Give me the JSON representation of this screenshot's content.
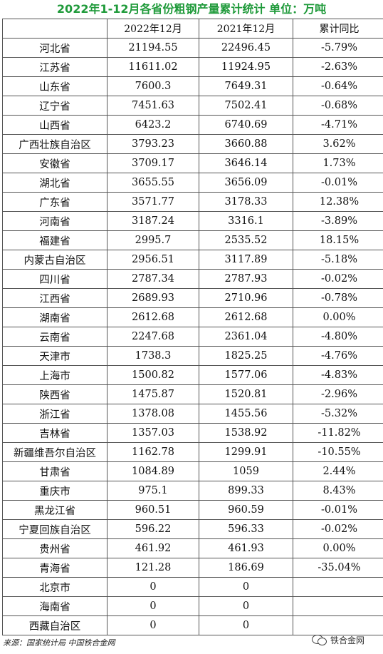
{
  "title": "2022年1-12月各省份粗钢产量累计统计  单位：万吨",
  "headers": [
    "",
    "2022年12月",
    "2021年12月",
    "累计同比"
  ],
  "rows": [
    {
      "name": "河北省",
      "v2022": "21194.55",
      "v2021": "22496.45",
      "yoy": "-5.79%",
      "dir": "neg"
    },
    {
      "name": "江苏省",
      "v2022": "11611.02",
      "v2021": "11924.95",
      "yoy": "-2.63%",
      "dir": "neg"
    },
    {
      "name": "山东省",
      "v2022": "7600.3",
      "v2021": "7649.31",
      "yoy": "-0.64%",
      "dir": "neg"
    },
    {
      "name": "辽宁省",
      "v2022": "7451.63",
      "v2021": "7502.41",
      "yoy": "-0.68%",
      "dir": "neg"
    },
    {
      "name": "山西省",
      "v2022": "6423.2",
      "v2021": "6740.69",
      "yoy": "-4.71%",
      "dir": "neg"
    },
    {
      "name": "广西壮族自治区",
      "v2022": "3793.23",
      "v2021": "3660.88",
      "yoy": "3.62%",
      "dir": "pos"
    },
    {
      "name": "安徽省",
      "v2022": "3709.17",
      "v2021": "3646.14",
      "yoy": "1.73%",
      "dir": "pos"
    },
    {
      "name": "湖北省",
      "v2022": "3655.55",
      "v2021": "3656.09",
      "yoy": "-0.01%",
      "dir": "neg"
    },
    {
      "name": "广东省",
      "v2022": "3571.77",
      "v2021": "3178.33",
      "yoy": "12.38%",
      "dir": "pos"
    },
    {
      "name": "河南省",
      "v2022": "3187.24",
      "v2021": "3316.1",
      "yoy": "-3.89%",
      "dir": "neg"
    },
    {
      "name": "福建省",
      "v2022": "2995.7",
      "v2021": "2535.52",
      "yoy": "18.15%",
      "dir": "pos"
    },
    {
      "name": "内蒙古自治区",
      "v2022": "2956.51",
      "v2021": "3117.89",
      "yoy": "-5.18%",
      "dir": "neg"
    },
    {
      "name": "四川省",
      "v2022": "2787.34",
      "v2021": "2787.93",
      "yoy": "-0.02%",
      "dir": "neg"
    },
    {
      "name": "江西省",
      "v2022": "2689.93",
      "v2021": "2710.96",
      "yoy": "-0.78%",
      "dir": "neg"
    },
    {
      "name": "湖南省",
      "v2022": "2612.68",
      "v2021": "2612.68",
      "yoy": "0.00%",
      "dir": "pos"
    },
    {
      "name": "云南省",
      "v2022": "2247.68",
      "v2021": "2361.04",
      "yoy": "-4.80%",
      "dir": "neg"
    },
    {
      "name": "天津市",
      "v2022": "1738.3",
      "v2021": "1825.25",
      "yoy": "-4.76%",
      "dir": "neg"
    },
    {
      "name": "上海市",
      "v2022": "1500.82",
      "v2021": "1577.06",
      "yoy": "-4.83%",
      "dir": "neg"
    },
    {
      "name": "陕西省",
      "v2022": "1475.87",
      "v2021": "1520.81",
      "yoy": "-2.96%",
      "dir": "neg"
    },
    {
      "name": "浙江省",
      "v2022": "1378.08",
      "v2021": "1455.56",
      "yoy": "-5.32%",
      "dir": "neg"
    },
    {
      "name": "吉林省",
      "v2022": "1357.03",
      "v2021": "1538.92",
      "yoy": "-11.82%",
      "dir": "neg"
    },
    {
      "name": "新疆维吾尔自治区",
      "v2022": "1162.78",
      "v2021": "1299.91",
      "yoy": "-10.55%",
      "dir": "neg"
    },
    {
      "name": "甘肃省",
      "v2022": "1084.89",
      "v2021": "1059",
      "yoy": "2.44%",
      "dir": "pos"
    },
    {
      "name": "重庆市",
      "v2022": "975.1",
      "v2021": "899.33",
      "yoy": "8.43%",
      "dir": "pos"
    },
    {
      "name": "黑龙江省",
      "v2022": "960.51",
      "v2021": "960.59",
      "yoy": "-0.01%",
      "dir": "neg"
    },
    {
      "name": "宁夏回族自治区",
      "v2022": "596.22",
      "v2021": "596.33",
      "yoy": "-0.02%",
      "dir": "neg"
    },
    {
      "name": "贵州省",
      "v2022": "461.92",
      "v2021": "461.93",
      "yoy": "0.00%",
      "dir": "pos"
    },
    {
      "name": "青海省",
      "v2022": "121.28",
      "v2021": "186.69",
      "yoy": "-35.04%",
      "dir": "neg"
    },
    {
      "name": "北京市",
      "v2022": "0",
      "v2021": "0",
      "yoy": "",
      "dir": ""
    },
    {
      "name": "海南省",
      "v2022": "0",
      "v2021": "0",
      "yoy": "",
      "dir": ""
    },
    {
      "name": "西藏自治区",
      "v2022": "0",
      "v2021": "0",
      "yoy": "",
      "dir": ""
    }
  ],
  "source": "来源：国家统计局  中国铁合金网",
  "watermark": "铁合金网",
  "colors": {
    "title": "#1f9a3a",
    "negative": "#2aa63b",
    "positive": "#e02020"
  }
}
